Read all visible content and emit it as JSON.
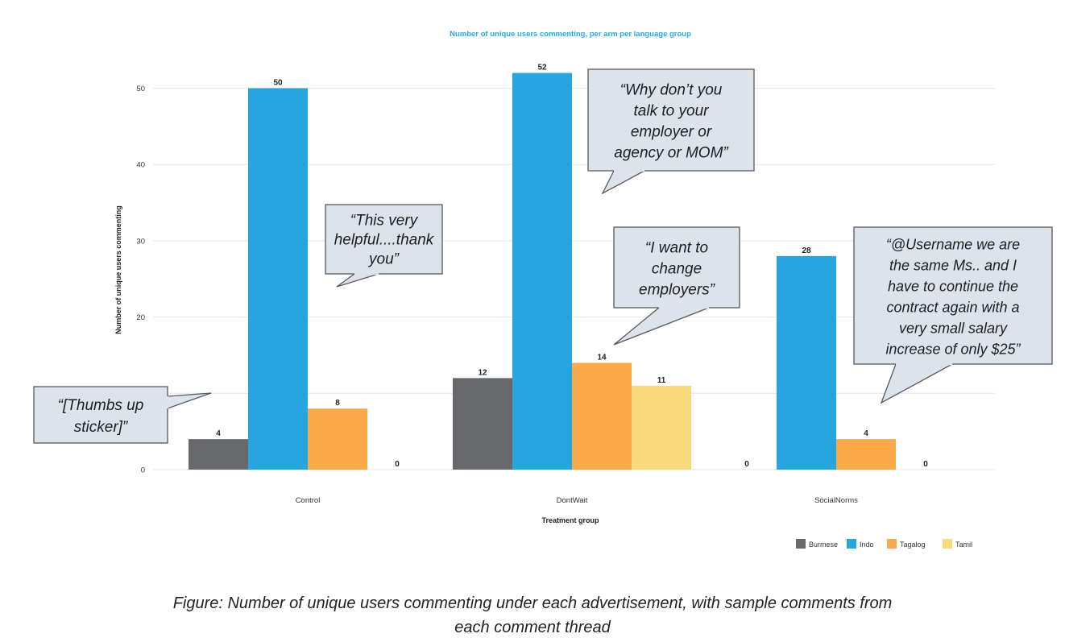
{
  "chart_data": {
    "type": "bar",
    "title": "Number of unique users commenting, per arm per language group",
    "xlabel": "Treatment group",
    "ylabel": "Number of unique users commenting",
    "categories": [
      "Control",
      "DontWait",
      "SocialNorms"
    ],
    "series": [
      {
        "name": "Burmese",
        "color": "#68696d",
        "values": [
          4,
          12,
          0
        ]
      },
      {
        "name": "Indo",
        "color": "#27a5de",
        "values": [
          50,
          52,
          28
        ]
      },
      {
        "name": "Tagalog",
        "color": "#fbaa4b",
        "values": [
          8,
          14,
          4
        ]
      },
      {
        "name": "Tamil",
        "color": "#f8db7c",
        "values": [
          0,
          11,
          0
        ]
      }
    ],
    "ylim": [
      0,
      55
    ],
    "yticks": [
      0,
      10,
      20,
      30,
      40,
      50
    ],
    "grid": true,
    "legend_position": "bottom-right",
    "title_color": "#2aa8e0"
  },
  "annotations": [
    {
      "id": "thumbs",
      "lines": [
        "“[Thumbs up",
        "sticker]”"
      ]
    },
    {
      "id": "helpful",
      "lines": [
        "“This very",
        "helpful....thank",
        "you”"
      ]
    },
    {
      "id": "employer",
      "lines": [
        "“Why don’t you",
        "talk to your",
        "employer or",
        "agency or MOM”"
      ]
    },
    {
      "id": "change",
      "lines": [
        "“I want to",
        "change",
        "employers”"
      ]
    },
    {
      "id": "username",
      "lines": [
        "“@Username we are",
        "the same Ms.. and I",
        "have to continue the",
        "contract again with a",
        "very small salary",
        "increase of only $25”"
      ]
    }
  ],
  "caption": {
    "line1": "Figure: Number of unique users commenting under each advertisement, with sample comments from",
    "line2": "each comment thread"
  }
}
